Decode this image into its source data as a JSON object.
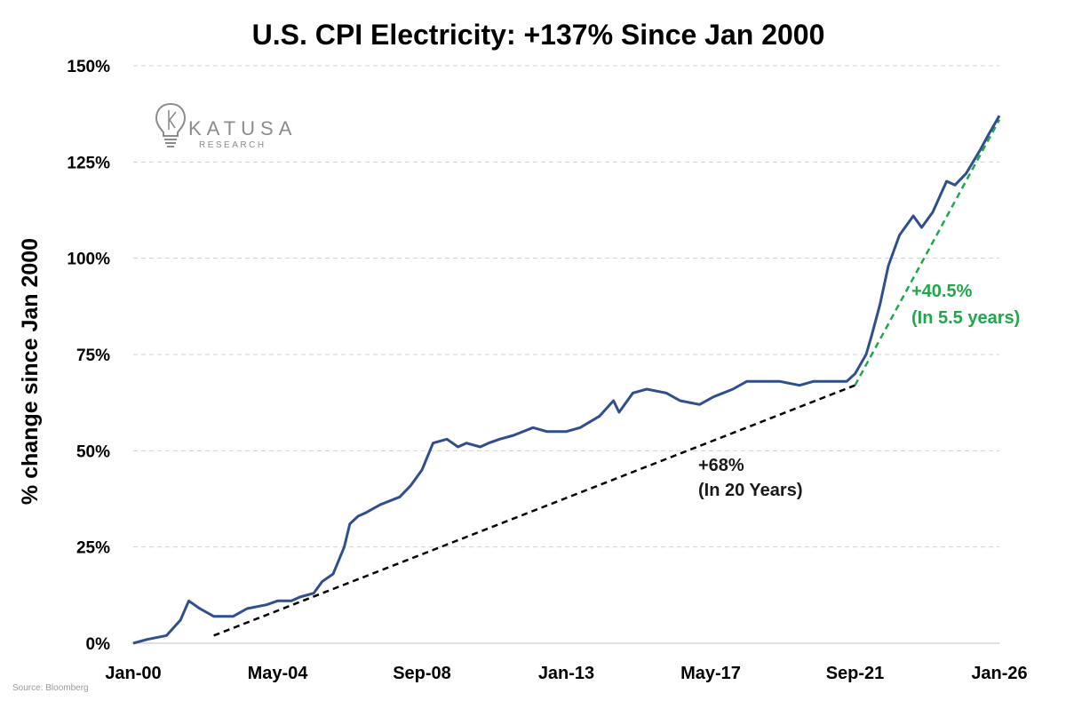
{
  "chart_data": {
    "type": "line",
    "title": "U.S. CPI Electricity: +137% Since Jan 2000",
    "ylabel": "% change since Jan 2000",
    "xlabel": "",
    "ylim": [
      0,
      150
    ],
    "yticks": [
      "0%",
      "25%",
      "50%",
      "75%",
      "100%",
      "125%",
      "150%"
    ],
    "ytick_values": [
      0,
      25,
      50,
      75,
      100,
      125,
      150
    ],
    "xticks": [
      "Jan-00",
      "May-04",
      "Sep-08",
      "Jan-13",
      "May-17",
      "Sep-21",
      "Jan-26"
    ],
    "xtick_values": [
      "2000-01",
      "2004-05",
      "2008-09",
      "2013-01",
      "2017-05",
      "2021-09",
      "2026-01"
    ],
    "xlim": [
      "2000-01",
      "2026-01"
    ],
    "grid": "horizontal dashed",
    "series": [
      {
        "color": "#2f4f8f",
        "x": [
          "2000-01",
          "2000-06",
          "2001-01",
          "2001-06",
          "2001-09",
          "2002-01",
          "2002-06",
          "2003-01",
          "2003-06",
          "2004-01",
          "2004-05",
          "2004-10",
          "2005-01",
          "2005-06",
          "2005-09",
          "2006-01",
          "2006-05",
          "2006-07",
          "2006-10",
          "2007-01",
          "2007-06",
          "2008-01",
          "2008-05",
          "2008-09",
          "2009-01",
          "2009-06",
          "2009-10",
          "2010-01",
          "2010-06",
          "2010-09",
          "2011-01",
          "2011-06",
          "2012-01",
          "2012-06",
          "2013-01",
          "2013-06",
          "2014-01",
          "2014-06",
          "2014-08",
          "2015-01",
          "2015-06",
          "2016-01",
          "2016-06",
          "2017-01",
          "2017-06",
          "2018-01",
          "2018-06",
          "2019-01",
          "2019-06",
          "2020-01",
          "2020-06",
          "2021-01",
          "2021-06",
          "2021-09",
          "2022-01",
          "2022-03",
          "2022-06",
          "2022-09",
          "2023-01",
          "2023-03",
          "2023-06",
          "2023-09",
          "2024-01",
          "2024-06",
          "2024-09",
          "2025-01",
          "2025-06",
          "2025-09",
          "2026-01"
        ],
        "values": [
          0,
          1,
          2,
          6,
          11,
          9,
          7,
          7,
          9,
          10,
          11,
          11,
          12,
          13,
          16,
          18,
          25,
          31,
          33,
          34,
          36,
          38,
          41,
          45,
          52,
          53,
          51,
          52,
          51,
          52,
          53,
          54,
          56,
          55,
          55,
          56,
          59,
          63,
          60,
          65,
          66,
          65,
          63,
          62,
          64,
          66,
          68,
          68,
          68,
          67,
          68,
          68,
          68,
          70,
          75,
          80,
          88,
          98,
          106,
          108,
          111,
          108,
          112,
          120,
          119,
          122,
          128,
          132,
          137
        ]
      }
    ],
    "trendlines": [
      {
        "color": "#000000",
        "style": "dashed",
        "x": [
          "2002-06",
          "2021-09"
        ],
        "values": [
          2,
          67
        ]
      },
      {
        "color": "#1fa84a",
        "style": "dashed",
        "x": [
          "2021-09",
          "2026-01"
        ],
        "values": [
          67,
          136
        ]
      }
    ],
    "annotations": [
      {
        "line1": "+68%",
        "line2": "(In 20 Years)",
        "color": "#1a1a1a"
      },
      {
        "line1": "+40.5%",
        "line2": "(In 5.5 years)",
        "color": "#1fa84a"
      }
    ]
  },
  "logo": {
    "name": "KATUSA",
    "sub": "RESEARCH",
    "icon": "lightbulb-icon"
  },
  "source": "Source: Bloomberg"
}
